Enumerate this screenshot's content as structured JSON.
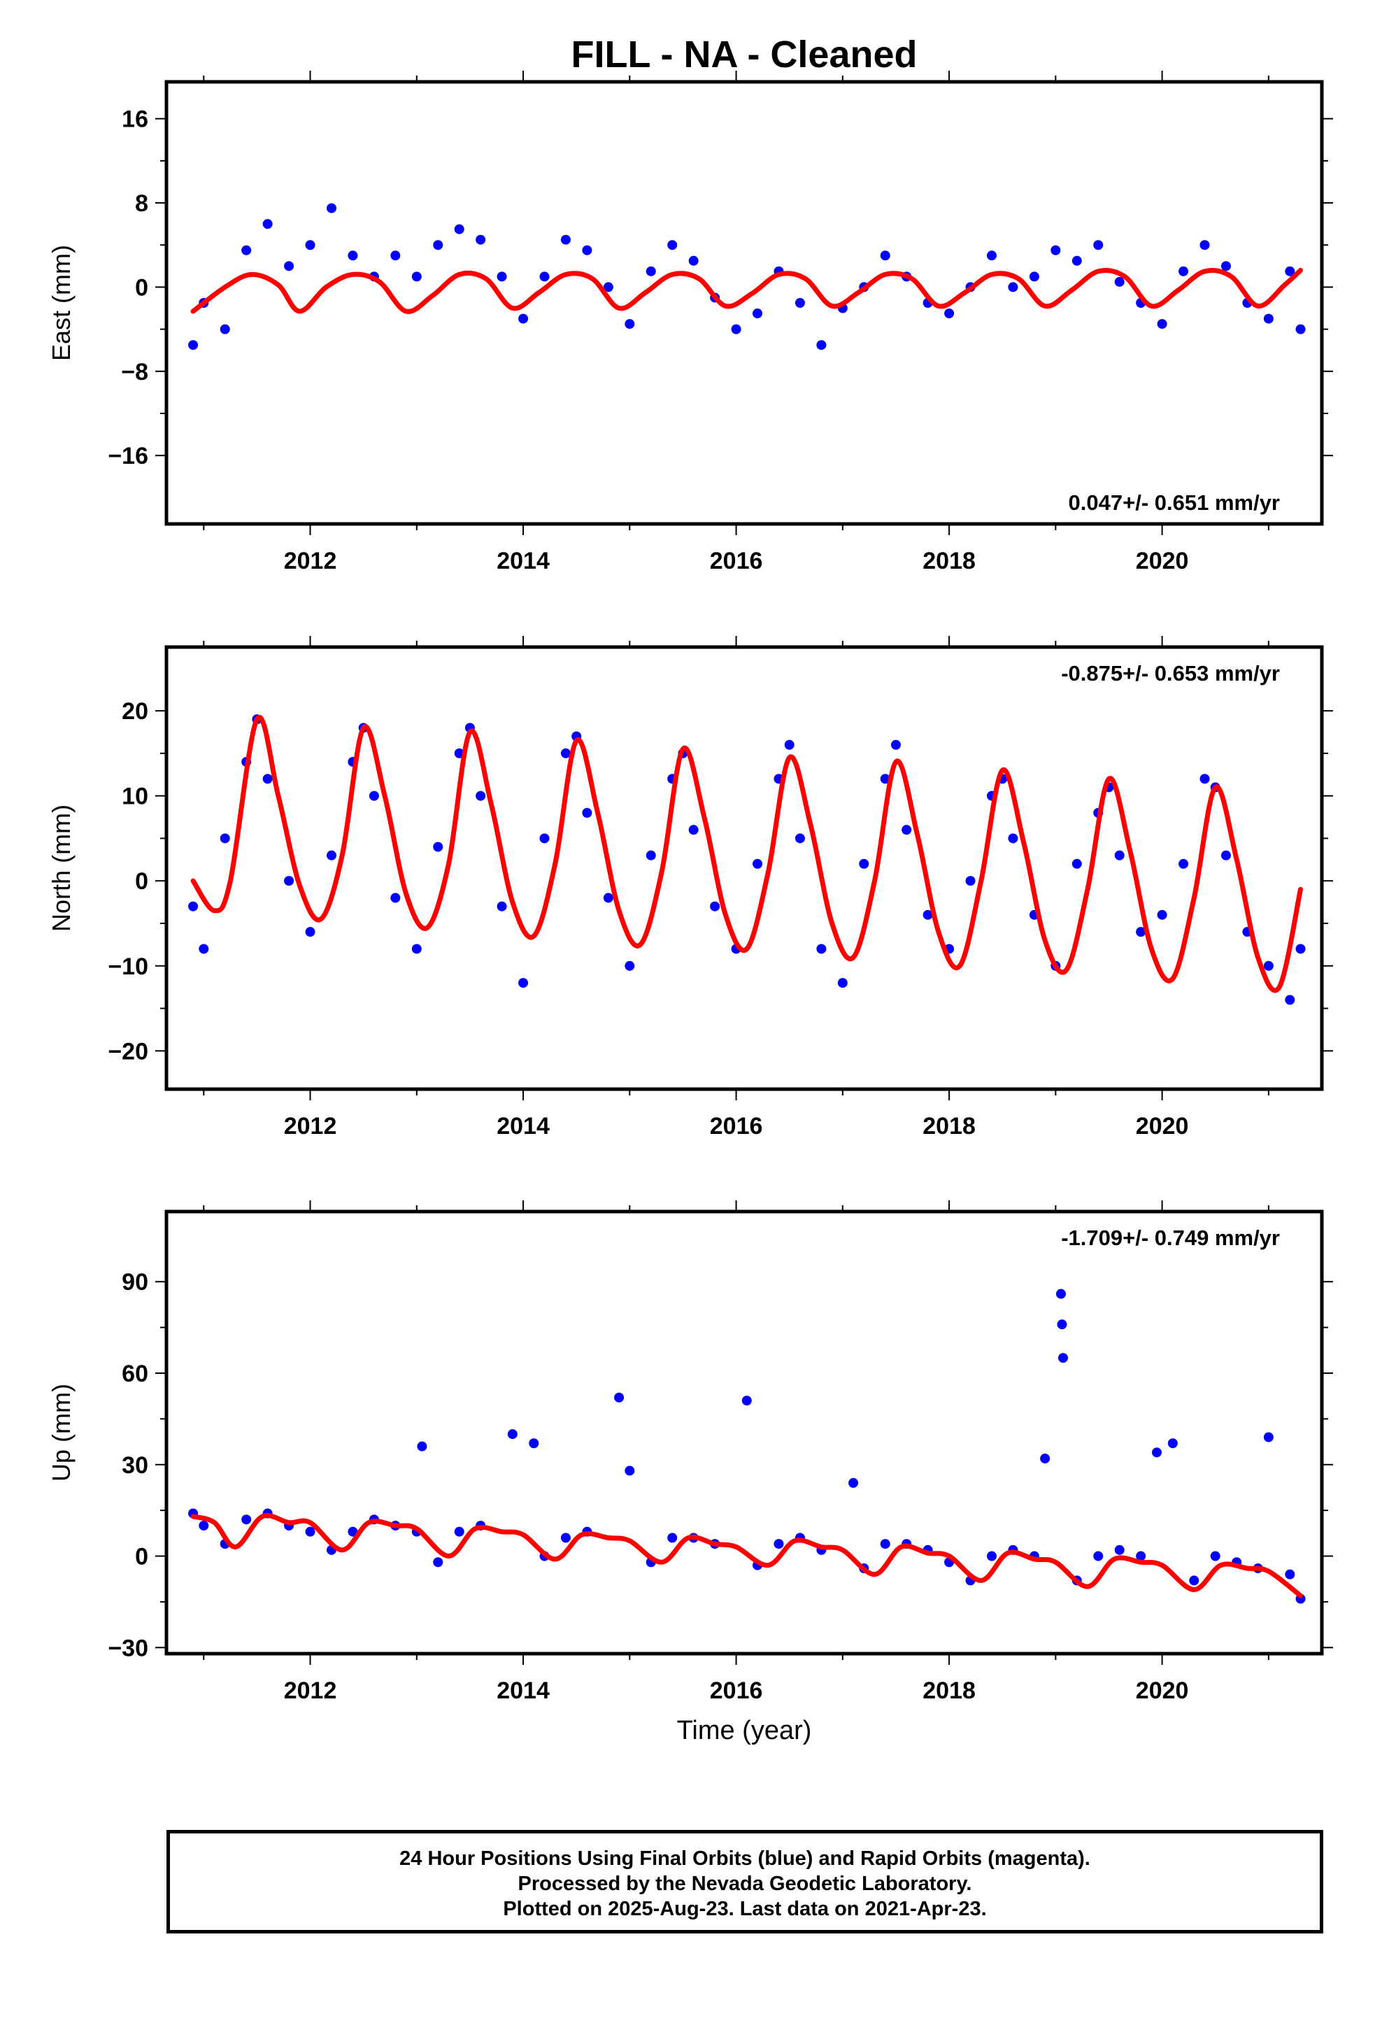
{
  "title": "FILL  - NA - Cleaned",
  "xlabel": "Time (year)",
  "colors": {
    "final_orbits": "#0000ff",
    "model": "#ff0000",
    "axes": "#000000"
  },
  "footer": {
    "line1": "24 Hour Positions Using Final Orbits (blue) and Rapid Orbits (magenta).",
    "line2": "Processed by the Nevada Geodetic Laboratory.",
    "line3": "Plotted on 2025-Aug-23. Last data on 2021-Apr-23."
  },
  "chart_data": [
    {
      "type": "scatter",
      "ylabel": "East (mm)",
      "xlim": [
        2010.65,
        2021.5
      ],
      "ylim": [
        -22.5,
        19.5
      ],
      "x_ticks": [
        2012,
        2014,
        2016,
        2018,
        2020
      ],
      "y_ticks": [
        -16,
        -8,
        0,
        8,
        16
      ],
      "rate_label": "0.047+/- 0.651 mm/yr",
      "series": [
        {
          "style": "points",
          "x": [
            2010.9,
            2011.0,
            2011.2,
            2011.4,
            2011.6,
            2011.8,
            2012.0,
            2012.2,
            2012.4,
            2012.6,
            2012.8,
            2013.0,
            2013.2,
            2013.4,
            2013.6,
            2013.8,
            2014.0,
            2014.2,
            2014.4,
            2014.6,
            2014.8,
            2015.0,
            2015.2,
            2015.4,
            2015.6,
            2015.8,
            2016.0,
            2016.2,
            2016.4,
            2016.6,
            2016.8,
            2017.0,
            2017.2,
            2017.4,
            2017.6,
            2017.8,
            2018.0,
            2018.2,
            2018.4,
            2018.6,
            2018.8,
            2019.0,
            2019.2,
            2019.4,
            2019.6,
            2019.8,
            2020.0,
            2020.2,
            2020.4,
            2020.6,
            2020.8,
            2021.0,
            2021.2,
            2021.3
          ],
          "y": [
            -5.5,
            -1.5,
            -4.0,
            3.5,
            6.0,
            2.0,
            4.0,
            7.5,
            3.0,
            1.0,
            3.0,
            1.0,
            4.0,
            5.5,
            4.5,
            1.0,
            -3.0,
            1.0,
            4.5,
            3.5,
            0.0,
            -3.5,
            1.5,
            4.0,
            2.5,
            -1.0,
            -4.0,
            -2.5,
            1.5,
            -1.5,
            -5.5,
            -2.0,
            0.0,
            3.0,
            1.0,
            -1.5,
            -2.5,
            0.0,
            3.0,
            0.0,
            1.0,
            3.5,
            2.5,
            4.0,
            0.5,
            -1.5,
            -3.5,
            1.5,
            4.0,
            2.0,
            -1.5,
            -3.0,
            1.5,
            -4.0
          ]
        },
        {
          "style": "model_line",
          "x": [
            2010.9,
            2011.2,
            2011.45,
            2011.7,
            2011.9,
            2012.15,
            2012.4,
            2012.65,
            2012.9,
            2013.15,
            2013.4,
            2013.65,
            2013.9,
            2014.15,
            2014.4,
            2014.65,
            2014.9,
            2015.15,
            2015.4,
            2015.65,
            2015.9,
            2016.15,
            2016.4,
            2016.65,
            2016.9,
            2017.15,
            2017.4,
            2017.65,
            2017.9,
            2018.15,
            2018.4,
            2018.65,
            2018.9,
            2019.15,
            2019.4,
            2019.65,
            2019.9,
            2020.15,
            2020.4,
            2020.65,
            2020.9,
            2021.15,
            2021.3
          ],
          "y": [
            -2.3,
            0.0,
            1.2,
            0.2,
            -2.3,
            0.0,
            1.2,
            0.5,
            -2.3,
            -0.8,
            1.2,
            0.8,
            -2.0,
            -0.5,
            1.2,
            0.8,
            -2.0,
            -0.5,
            1.2,
            0.8,
            -1.8,
            -0.6,
            1.2,
            0.8,
            -1.8,
            -0.5,
            1.2,
            0.8,
            -1.8,
            -0.5,
            1.2,
            0.8,
            -1.8,
            -0.3,
            1.5,
            1.0,
            -1.8,
            -0.3,
            1.5,
            1.0,
            -1.8,
            0.2,
            1.6
          ]
        }
      ]
    },
    {
      "type": "scatter",
      "ylabel": "North (mm)",
      "xlim": [
        2010.65,
        2021.5
      ],
      "ylim": [
        -24.5,
        27.5
      ],
      "x_ticks": [
        2012,
        2014,
        2016,
        2018,
        2020
      ],
      "y_ticks": [
        -20,
        -10,
        0,
        10,
        20
      ],
      "rate_label": "-0.875+/- 0.653 mm/yr",
      "series": [
        {
          "style": "points",
          "x": [
            2010.9,
            2011.0,
            2011.2,
            2011.4,
            2011.5,
            2011.6,
            2011.8,
            2012.0,
            2012.2,
            2012.4,
            2012.5,
            2012.6,
            2012.8,
            2013.0,
            2013.2,
            2013.4,
            2013.5,
            2013.6,
            2013.8,
            2014.0,
            2014.2,
            2014.4,
            2014.5,
            2014.6,
            2014.8,
            2015.0,
            2015.2,
            2015.4,
            2015.5,
            2015.6,
            2015.8,
            2016.0,
            2016.2,
            2016.4,
            2016.5,
            2016.6,
            2016.8,
            2017.0,
            2017.2,
            2017.4,
            2017.5,
            2017.6,
            2017.8,
            2018.0,
            2018.2,
            2018.4,
            2018.5,
            2018.6,
            2018.8,
            2019.0,
            2019.2,
            2019.4,
            2019.5,
            2019.6,
            2019.8,
            2020.0,
            2020.2,
            2020.4,
            2020.5,
            2020.6,
            2020.8,
            2021.0,
            2021.2,
            2021.3
          ],
          "y": [
            -3.0,
            -8.0,
            5.0,
            14.0,
            19.0,
            12.0,
            0.0,
            -6.0,
            3.0,
            14.0,
            18.0,
            10.0,
            -2.0,
            -8.0,
            4.0,
            15.0,
            18.0,
            10.0,
            -3.0,
            -12.0,
            5.0,
            15.0,
            17.0,
            8.0,
            -2.0,
            -10.0,
            3.0,
            12.0,
            15.0,
            6.0,
            -3.0,
            -8.0,
            2.0,
            12.0,
            16.0,
            5.0,
            -8.0,
            -12.0,
            2.0,
            12.0,
            16.0,
            6.0,
            -4.0,
            -8.0,
            0.0,
            10.0,
            12.0,
            5.0,
            -4.0,
            -10.0,
            2.0,
            8.0,
            11.0,
            3.0,
            -6.0,
            -4.0,
            2.0,
            12.0,
            11.0,
            3.0,
            -6.0,
            -10.0,
            -14.0,
            -8.0
          ]
        },
        {
          "style": "model_line",
          "x": [
            2010.9,
            2011.1,
            2011.25,
            2011.5,
            2011.7,
            2011.9,
            2012.1,
            2012.3,
            2012.5,
            2012.7,
            2012.9,
            2013.1,
            2013.3,
            2013.5,
            2013.7,
            2013.9,
            2014.1,
            2014.3,
            2014.5,
            2014.7,
            2014.9,
            2015.1,
            2015.3,
            2015.5,
            2015.7,
            2015.9,
            2016.1,
            2016.3,
            2016.5,
            2016.7,
            2016.9,
            2017.1,
            2017.3,
            2017.5,
            2017.7,
            2017.9,
            2018.1,
            2018.3,
            2018.5,
            2018.7,
            2018.9,
            2019.1,
            2019.3,
            2019.5,
            2019.7,
            2019.9,
            2020.1,
            2020.3,
            2020.5,
            2020.7,
            2020.9,
            2021.1,
            2021.3
          ],
          "y": [
            0.0,
            -3.5,
            0.0,
            19.0,
            10.0,
            -0.5,
            -4.5,
            3.0,
            18.0,
            10.0,
            -1.5,
            -5.5,
            2.0,
            17.5,
            9.0,
            -2.5,
            -6.5,
            2.0,
            16.5,
            8.0,
            -3.5,
            -7.5,
            1.0,
            15.5,
            7.5,
            -4.0,
            -8.0,
            1.0,
            14.5,
            6.5,
            -5.0,
            -9.0,
            0.0,
            14.0,
            5.5,
            -6.0,
            -10.0,
            0.0,
            13.0,
            4.5,
            -7.0,
            -10.5,
            -1.0,
            12.0,
            3.5,
            -8.0,
            -11.5,
            -2.0,
            11.0,
            2.5,
            -9.0,
            -12.5,
            -1.0
          ]
        }
      ]
    },
    {
      "type": "scatter",
      "ylabel": "Up (mm)",
      "xlim": [
        2010.65,
        2021.5
      ],
      "ylim": [
        -32,
        113
      ],
      "x_ticks": [
        2012,
        2014,
        2016,
        2018,
        2020
      ],
      "y_ticks": [
        -30,
        0,
        30,
        60,
        90
      ],
      "rate_label": "-1.709+/- 0.749 mm/yr",
      "series": [
        {
          "style": "points",
          "x": [
            2010.9,
            2011.0,
            2011.2,
            2011.4,
            2011.6,
            2011.8,
            2012.0,
            2012.2,
            2012.4,
            2012.6,
            2012.8,
            2013.0,
            2013.05,
            2013.2,
            2013.4,
            2013.6,
            2013.9,
            2014.1,
            2014.2,
            2014.4,
            2014.6,
            2014.9,
            2015.0,
            2015.2,
            2015.4,
            2015.6,
            2015.8,
            2016.1,
            2016.2,
            2016.4,
            2016.6,
            2016.8,
            2017.1,
            2017.2,
            2017.4,
            2017.6,
            2017.8,
            2018.0,
            2018.2,
            2018.4,
            2018.6,
            2018.8,
            2018.9,
            2019.05,
            2019.06,
            2019.07,
            2019.2,
            2019.4,
            2019.6,
            2019.8,
            2019.95,
            2020.1,
            2020.3,
            2020.5,
            2020.7,
            2020.9,
            2021.0,
            2021.2,
            2021.3
          ],
          "y": [
            14.0,
            10.0,
            4.0,
            12.0,
            14.0,
            10.0,
            8.0,
            2.0,
            8.0,
            12.0,
            10.0,
            8.0,
            36.0,
            -2.0,
            8.0,
            10.0,
            40.0,
            37.0,
            0.0,
            6.0,
            8.0,
            52.0,
            28.0,
            -2.0,
            6.0,
            6.0,
            4.0,
            51.0,
            -3.0,
            4.0,
            6.0,
            2.0,
            24.0,
            -4.0,
            4.0,
            4.0,
            2.0,
            -2.0,
            -8.0,
            0.0,
            2.0,
            0.0,
            32.0,
            86.0,
            76.0,
            65.0,
            -8.0,
            0.0,
            2.0,
            0.0,
            34.0,
            37.0,
            -8.0,
            0.0,
            -2.0,
            -4.0,
            39.0,
            -6.0,
            -14.0
          ]
        },
        {
          "style": "model_line",
          "x": [
            2010.9,
            2011.1,
            2011.3,
            2011.55,
            2011.8,
            2012.0,
            2012.3,
            2012.55,
            2012.8,
            2013.0,
            2013.3,
            2013.55,
            2013.8,
            2014.0,
            2014.3,
            2014.55,
            2014.8,
            2015.0,
            2015.3,
            2015.55,
            2015.8,
            2016.0,
            2016.3,
            2016.55,
            2016.8,
            2017.0,
            2017.3,
            2017.55,
            2017.8,
            2018.0,
            2018.3,
            2018.55,
            2018.8,
            2019.0,
            2019.3,
            2019.55,
            2019.8,
            2020.0,
            2020.3,
            2020.55,
            2020.8,
            2021.0,
            2021.3
          ],
          "y": [
            13.0,
            11.0,
            3.0,
            13.0,
            11.0,
            11.0,
            2.0,
            11.0,
            10.0,
            9.0,
            0.0,
            9.0,
            8.0,
            7.0,
            -1.0,
            7.0,
            6.0,
            5.0,
            -2.0,
            6.0,
            4.0,
            3.0,
            -3.0,
            5.0,
            3.0,
            2.0,
            -6.0,
            3.0,
            1.0,
            0.0,
            -8.0,
            1.0,
            -1.0,
            -2.0,
            -10.0,
            -1.0,
            -2.0,
            -3.0,
            -11.0,
            -3.0,
            -4.0,
            -5.0,
            -13.0
          ]
        }
      ]
    }
  ]
}
